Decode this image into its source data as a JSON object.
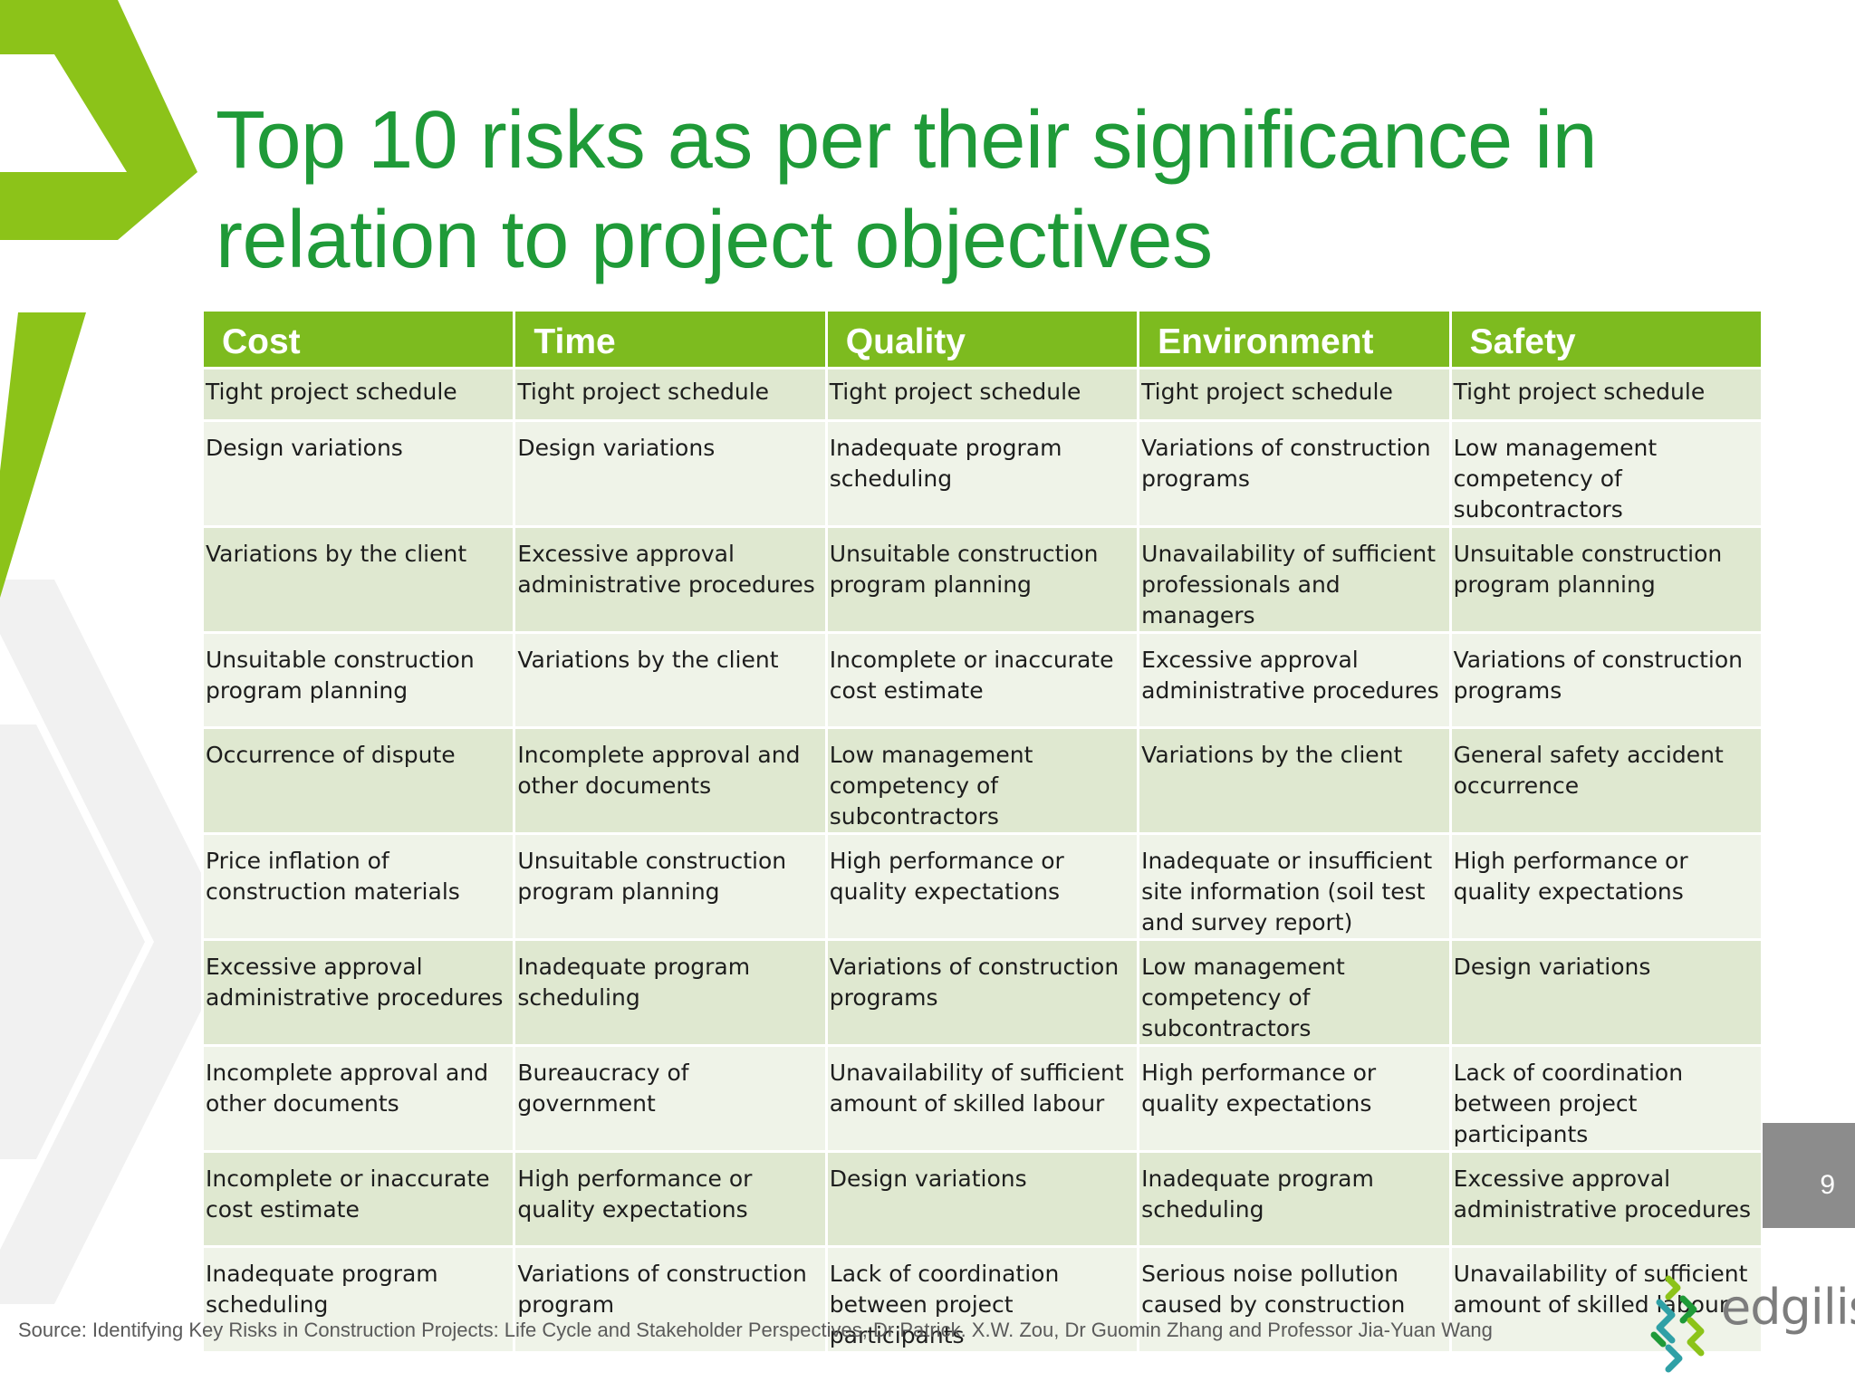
{
  "title": {
    "line1": "Top 10 risks as per their significance in",
    "line2": "relation to project objectives"
  },
  "table": {
    "headers": [
      "Cost",
      "Time",
      "Quality",
      "Environment",
      "Safety"
    ],
    "rows": [
      [
        "Tight project schedule",
        "Tight project schedule",
        "Tight project schedule",
        "Tight project schedule",
        "Tight project schedule"
      ],
      [
        "Design variations",
        "Design variations",
        "Inadequate program scheduling",
        "Variations of construction programs",
        "Low management competency of subcontractors"
      ],
      [
        "Variations by the client",
        "Excessive approval administrative procedures",
        "Unsuitable construction program planning",
        "Unavailability of sufficient professionals and managers",
        "Unsuitable construction program planning"
      ],
      [
        "Unsuitable construction program planning",
        "Variations by the client",
        "Incomplete or inaccurate cost estimate",
        "Excessive approval administrative procedures",
        "Variations of construction programs"
      ],
      [
        "Occurrence of dispute",
        "Incomplete approval and other documents",
        "Low management competency of subcontractors",
        "Variations by the client",
        "General safety accident occurrence"
      ],
      [
        "Price inflation of construction materials",
        "Unsuitable construction program planning",
        "High performance or quality expectations",
        "Inadequate or insufficient site information (soil test and survey report)",
        "High performance or quality expectations"
      ],
      [
        "Excessive approval administrative procedures",
        "Inadequate program scheduling",
        "Variations of construction programs",
        "Low management competency of subcontractors",
        "Design variations"
      ],
      [
        "Incomplete approval and other documents",
        "Bureaucracy of government",
        "Unavailability of sufficient amount of skilled labour",
        "High performance or quality expectations",
        "Lack of coordination between project participants"
      ],
      [
        "Incomplete or inaccurate cost estimate",
        "High performance or quality expectations",
        "Design variations",
        "Inadequate program scheduling",
        "Excessive approval administrative procedures"
      ],
      [
        "Inadequate program scheduling",
        "Variations of construction program",
        "Lack of coordination between project participants",
        "Serious noise pollution caused by construction",
        "Unavailability of sufficient amount of skilled labour"
      ]
    ]
  },
  "page_number": "9",
  "source": "Source: Identifying Key Risks in Construction Projects: Life Cycle and Stakeholder Perspectives, Dr Patrick. X.W. Zou, Dr Guomin Zhang and Professor Jia-Yuan Wang",
  "logo": {
    "text": "edgilis",
    "icon": "edgilis-logo-icon"
  },
  "colors": {
    "title": "#1f9a38",
    "header_bg": "#7dbb1f",
    "row_odd": "#dfe8d0",
    "row_even": "#eff3e8",
    "chevron": "#8cc319"
  }
}
